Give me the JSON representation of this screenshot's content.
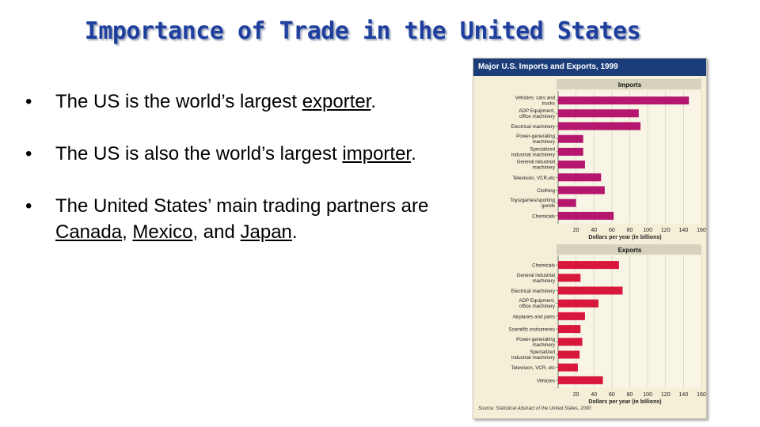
{
  "slide": {
    "title": "Importance of Trade in the United States",
    "bullets": [
      {
        "pre": "The US is the world’s largest ",
        "em": "exporter",
        "post": "."
      },
      {
        "pre": "The US is also the world’s largest ",
        "em": "importer",
        "post": "."
      },
      {
        "pre": "The United States’ main trading partners are ",
        "em1": "Canada",
        "mid1": ", ",
        "em2": "Mexico",
        "mid2": ", and ",
        "em3": "Japan",
        "post": "."
      }
    ]
  },
  "colors": {
    "title": "#1f3f9e",
    "panel_header": "#1b3e7a",
    "panel_bg": "#f4efd6",
    "import_bar": "#b5176e",
    "export_bar": "#d8173c"
  },
  "chart_data": [
    {
      "type": "bar",
      "orientation": "horizontal",
      "title": "Major U.S. Imports and Exports, 1999",
      "subtitle": "Imports",
      "categories": [
        "Vehicles: cars and trucks",
        "ADP Equipment, office machinery",
        "Electrical machinery",
        "Power-generating machinery",
        "Specialized industrial machinery",
        "General industrial machinery",
        "Television, VCR,etc",
        "Clothing",
        "Toys/games/sporting goods",
        "Chemicals"
      ],
      "values": [
        146,
        90,
        92,
        28,
        28,
        30,
        48,
        52,
        20,
        62
      ],
      "xlabel": "Dollars per year (in billions)",
      "xticks": [
        20,
        40,
        60,
        80,
        100,
        120,
        140,
        160
      ],
      "xlim": [
        0,
        160
      ]
    },
    {
      "type": "bar",
      "orientation": "horizontal",
      "subtitle": "Exports",
      "categories": [
        "Chemicals",
        "General industrial machinery",
        "Electrical machinery",
        "ADP Equipment, office machinery",
        "Airplanes and parts",
        "Scientific instruments",
        "Power-generating machinery",
        "Specialized industrial machinery",
        "Television, VCR, etc",
        "Vehicles"
      ],
      "values": [
        68,
        25,
        72,
        45,
        30,
        25,
        27,
        24,
        22,
        50
      ],
      "xlabel": "Dollars per year (in billions)",
      "xticks": [
        20,
        40,
        60,
        80,
        100,
        120,
        140,
        160
      ],
      "xlim": [
        0,
        160
      ]
    }
  ],
  "source": "Source: Statistical Abstract of the United States, 2000"
}
